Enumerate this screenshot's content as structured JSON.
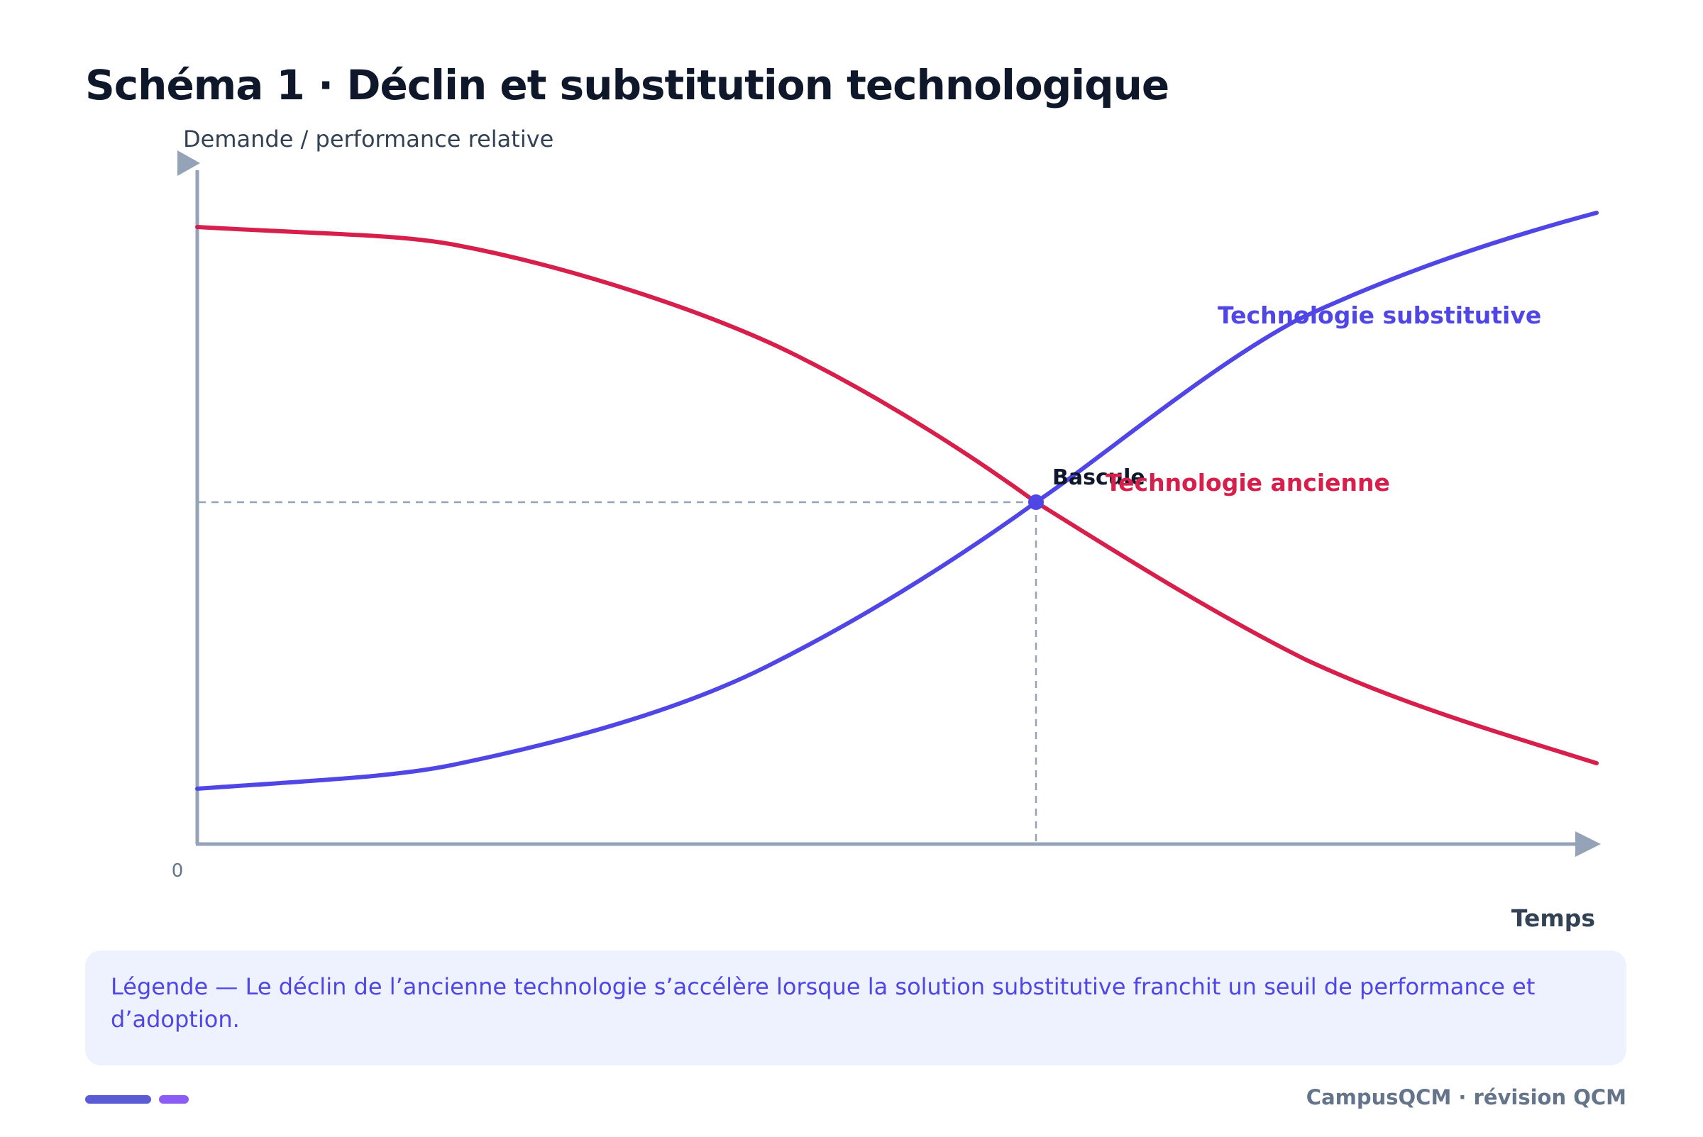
{
  "title": "Schéma 1 · Déclin et substitution technologique",
  "diagram": {
    "y_axis_label": "Demande / performance relative",
    "x_axis_label": "Temps",
    "origin_label": "0",
    "curves": [
      {
        "name": "Technologie ancienne",
        "color": "#d61f4b",
        "trend": "decreasing"
      },
      {
        "name": "Technologie substitutive",
        "color": "#4f46e5",
        "trend": "increasing"
      }
    ],
    "crossover_label": "Bascule"
  },
  "legend": {
    "text": "Légende — Le déclin de l’ancienne technologie s’accélère lorsque la solution substitutive franchit un seuil de performance et d’adoption."
  },
  "footer": {
    "brand": "CampusQCM · révision QCM",
    "accent_colors": [
      "#5b5bd6",
      "#8b5cf6"
    ]
  },
  "colors": {
    "axis": "#94a3b8",
    "title": "#0f172a",
    "legend_bg": "#eef2fe",
    "legend_text": "#4f46e5"
  }
}
